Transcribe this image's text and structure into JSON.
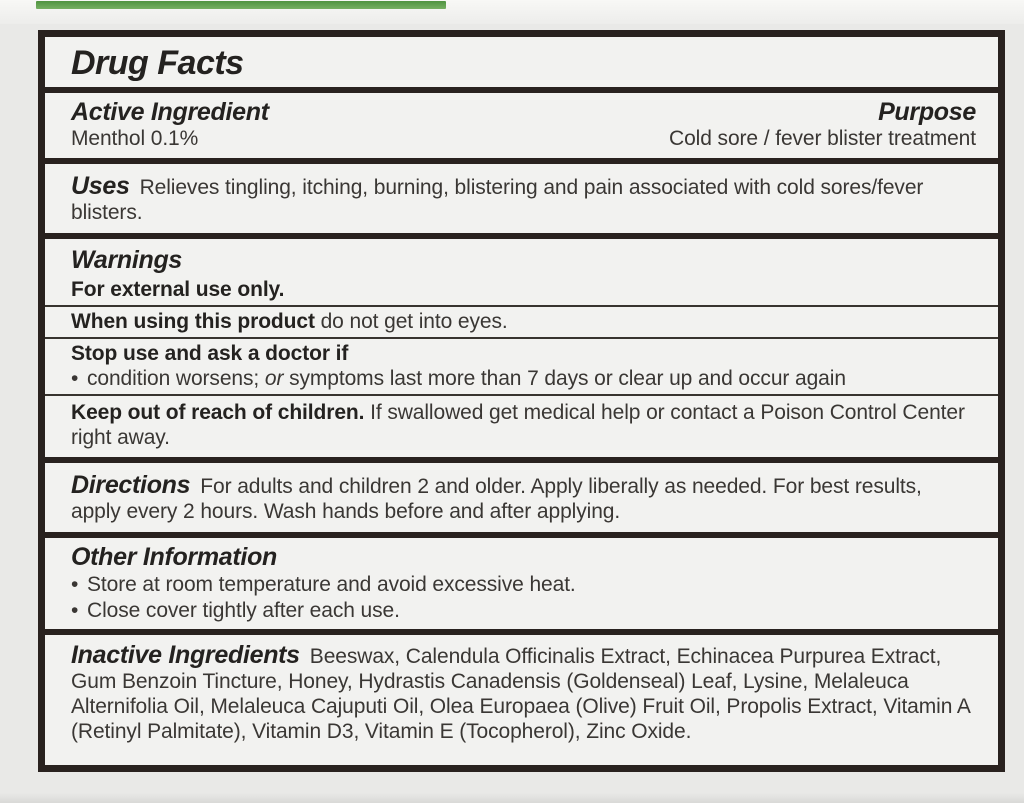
{
  "accent_color": "#4f9340",
  "label": {
    "title": "Drug Facts",
    "active_ingredient": {
      "heading": "Active Ingredient",
      "value": "Menthol 0.1%"
    },
    "purpose": {
      "heading": "Purpose",
      "value": "Cold sore / fever blister treatment"
    },
    "uses": {
      "heading": "Uses",
      "text": "Relieves tingling, itching, burning, blistering and pain associated with cold sores/fever blisters."
    },
    "warnings": {
      "heading": "Warnings",
      "external_use": "For external use only.",
      "when_using_bold": "When using this product",
      "when_using_rest": " do not get into eyes.",
      "stop_use_heading": "Stop use and ask a doctor if",
      "stop_use_bullet_pre": "condition worsens; ",
      "stop_use_bullet_italic": "or",
      "stop_use_bullet_post": " symptoms last more than 7 days or clear up and occur again",
      "keep_out_bold": "Keep out of reach of children.",
      "keep_out_rest": " If swallowed get medical help or contact a Poison Control Center right away."
    },
    "directions": {
      "heading": "Directions",
      "text": "For adults and children 2 and older. Apply liberally as needed. For best results, apply every 2 hours. Wash hands before and after applying."
    },
    "other_information": {
      "heading": "Other Information",
      "bullets": [
        "Store at room temperature and avoid excessive heat.",
        "Close cover tightly after each use."
      ]
    },
    "inactive_ingredients": {
      "heading": "Inactive Ingredients",
      "text": "Beeswax, Calendula Officinalis Extract, Echinacea Purpurea Extract, Gum Benzoin Tincture, Honey, Hydrastis Canadensis (Goldenseal) Leaf, Lysine, Melaleuca Alternifolia Oil, Melaleuca Cajuputi Oil, Olea Europaea (Olive) Fruit Oil, Propolis Extract, Vitamin A (Retinyl Palmitate), Vitamin D3, Vitamin E (Tocopherol), Zinc Oxide."
    }
  }
}
